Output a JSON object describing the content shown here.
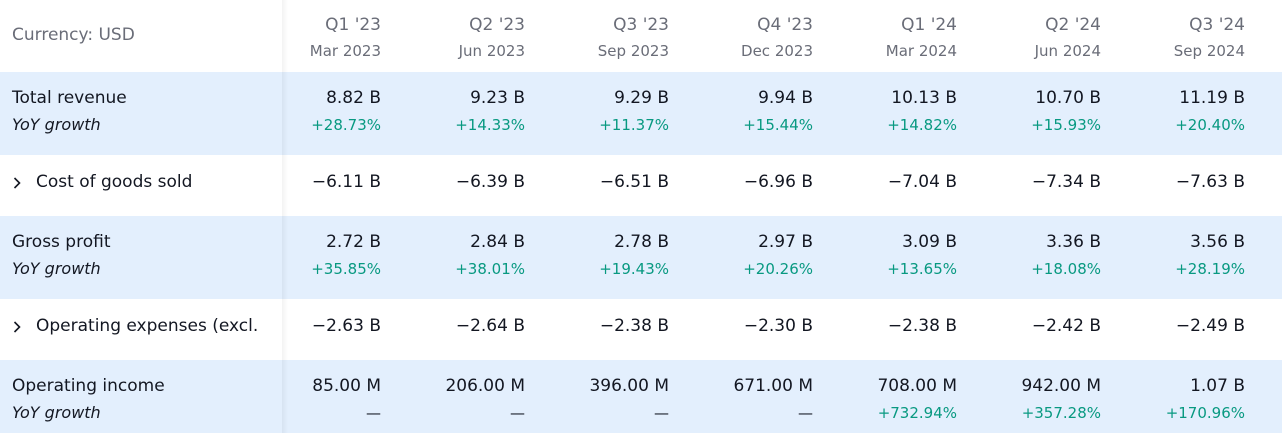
{
  "header": {
    "currency": "Currency: USD",
    "periods": [
      {
        "quarter": "Q1 '23",
        "date": "Mar 2023"
      },
      {
        "quarter": "Q2 '23",
        "date": "Jun 2023"
      },
      {
        "quarter": "Q3 '23",
        "date": "Sep 2023"
      },
      {
        "quarter": "Q4 '23",
        "date": "Dec 2023"
      },
      {
        "quarter": "Q1 '24",
        "date": "Mar 2024"
      },
      {
        "quarter": "Q2 '24",
        "date": "Jun 2024"
      },
      {
        "quarter": "Q3 '24",
        "date": "Sep 2024"
      }
    ]
  },
  "rows": [
    {
      "label": "Total revenue",
      "sub_label": "YoY growth",
      "values": [
        "8.82 B",
        "9.23 B",
        "9.29 B",
        "9.94 B",
        "10.13 B",
        "10.70 B",
        "11.19 B"
      ],
      "growth": [
        "+28.73%",
        "+14.33%",
        "+11.37%",
        "+15.44%",
        "+14.82%",
        "+15.93%",
        "+20.40%"
      ]
    },
    {
      "label": "Cost of goods sold",
      "expand_icon": "chevron-right-icon",
      "values": [
        "−6.11 B",
        "−6.39 B",
        "−6.51 B",
        "−6.96 B",
        "−7.04 B",
        "−7.34 B",
        "−7.63 B"
      ]
    },
    {
      "label": "Gross profit",
      "sub_label": "YoY growth",
      "values": [
        "2.72 B",
        "2.84 B",
        "2.78 B",
        "2.97 B",
        "3.09 B",
        "3.36 B",
        "3.56 B"
      ],
      "growth": [
        "+35.85%",
        "+38.01%",
        "+19.43%",
        "+20.26%",
        "+13.65%",
        "+18.08%",
        "+28.19%"
      ]
    },
    {
      "label": "Operating expenses (excl.",
      "expand_icon": "chevron-right-icon",
      "values": [
        "−2.63 B",
        "−2.64 B",
        "−2.38 B",
        "−2.30 B",
        "−2.38 B",
        "−2.42 B",
        "−2.49 B"
      ]
    },
    {
      "label": "Operating income",
      "sub_label": "YoY growth",
      "values": [
        "85.00 M",
        "206.00 M",
        "396.00 M",
        "671.00 M",
        "708.00 M",
        "942.00 M",
        "1.07 B"
      ],
      "growth": [
        "—",
        "—",
        "—",
        "—",
        "+732.94%",
        "+357.28%",
        "+170.96%"
      ]
    }
  ],
  "colors": {
    "highlight_row": "#e3effd",
    "positive": "#089981",
    "muted": "#6a6d78",
    "text": "#131722"
  }
}
